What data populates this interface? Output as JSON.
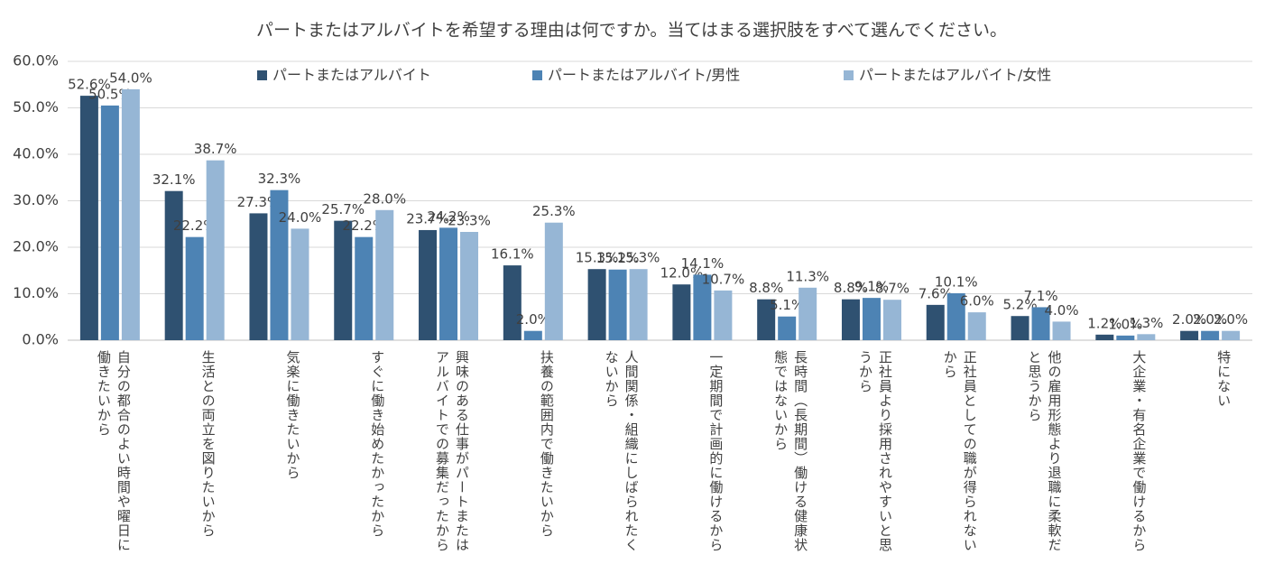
{
  "chart_data": {
    "type": "bar",
    "title": "パートまたはアルバイトを希望する理由は何ですか。当てはまる選択肢をすべて選んでください。",
    "categories": [
      "自分の都合のよい時間や曜日に働きたいから",
      "生活との両立を図りたいから",
      "気楽に働きたいから",
      "すぐに働き始めたかったから",
      "興味のある仕事がパートまたはアルバイトでの募集だったから",
      "扶養の範囲内で働きたいから",
      "人間関係・組織にしばられたくないから",
      "一定期間で計画的に働けるから",
      "長時間（長期間）働ける健康状態ではないから",
      "正社員より採用されやすいと思うから",
      "正社員としての職が得られないから",
      "他の雇用形態より退職に柔軟だと思うから",
      "大企業・有名企業で働けるから",
      "特にない"
    ],
    "series": [
      {
        "name": "パートまたはアルバイト",
        "color": "#2f5171",
        "values": [
          52.6,
          32.1,
          27.3,
          25.7,
          23.7,
          16.1,
          15.3,
          12.0,
          8.8,
          8.8,
          7.6,
          5.2,
          1.2,
          2.0
        ],
        "value_labels": [
          "52.6%",
          "32.1%",
          "27.3%",
          "25.7%",
          "23.7%",
          "16.1%",
          "15.3%",
          "12.0%",
          "8.8%",
          "8.8%",
          "7.6%",
          "5.2%",
          "1.2%",
          "2.0%"
        ]
      },
      {
        "name": "パートまたはアルバイト/男性",
        "color": "#4d83b4",
        "values": [
          50.5,
          22.2,
          32.3,
          22.2,
          24.2,
          2.0,
          15.2,
          14.1,
          5.1,
          9.1,
          10.1,
          7.1,
          1.0,
          2.0
        ],
        "value_labels": [
          "50.5%",
          "22.2%",
          "32.3%",
          "22.2%",
          "24.2%",
          "2.0%",
          "15.2%",
          "14.1%",
          "5.1%",
          "9.1%",
          "10.1%",
          "7.1%",
          "1.0%",
          "2.0%"
        ]
      },
      {
        "name": "パートまたはアルバイト/女性",
        "color": "#96b6d5",
        "values": [
          54.0,
          38.7,
          24.0,
          28.0,
          23.3,
          25.3,
          15.3,
          10.7,
          11.3,
          8.7,
          6.0,
          4.0,
          1.3,
          2.0
        ],
        "value_labels": [
          "54.0%",
          "38.7%",
          "24.0%",
          "28.0%",
          "23.3%",
          "25.3%",
          "15.3%",
          "10.7%",
          "11.3%",
          "8.7%",
          "6.0%",
          "4.0%",
          "1.3%",
          "2.0%"
        ]
      }
    ],
    "ylim": [
      0,
      60
    ],
    "yticks": [
      {
        "value": 0,
        "label": "0.0%"
      },
      {
        "value": 10,
        "label": "10.0%"
      },
      {
        "value": 20,
        "label": "20.0%"
      },
      {
        "value": 30,
        "label": "30.0%"
      },
      {
        "value": 40,
        "label": "40.0%"
      },
      {
        "value": 50,
        "label": "50.0%"
      },
      {
        "value": 60,
        "label": "60.0%"
      }
    ],
    "grid": true
  }
}
